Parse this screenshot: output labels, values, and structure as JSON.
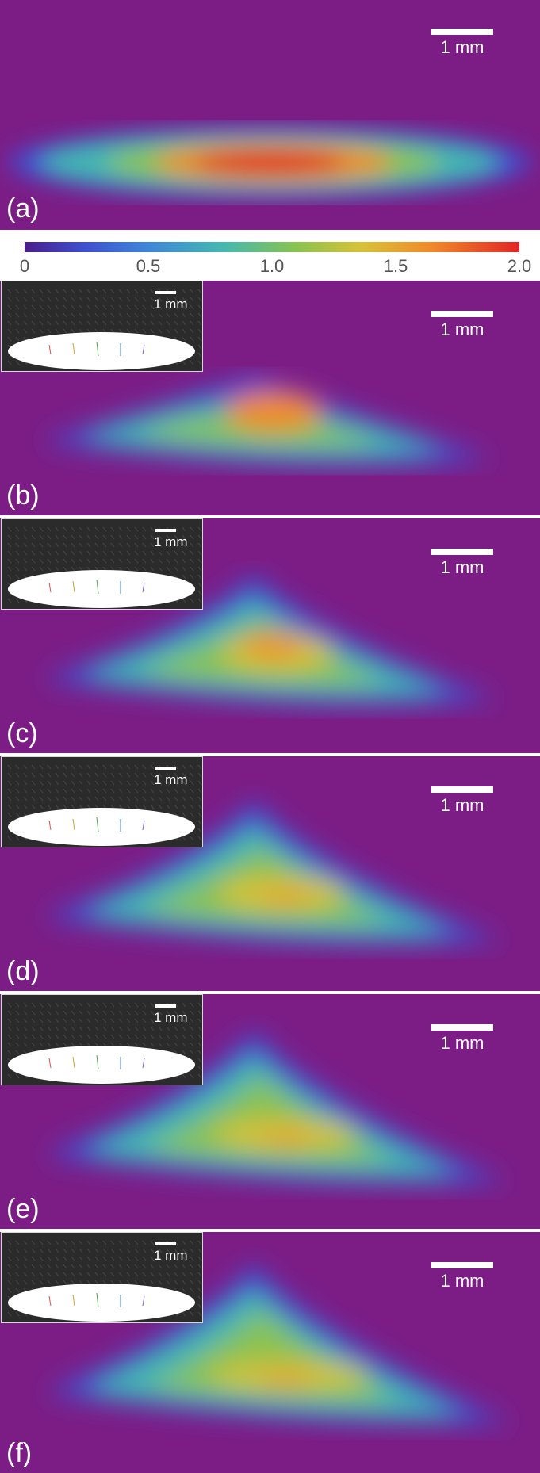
{
  "figure": {
    "panels": [
      {
        "label": "(a)",
        "scale": "1 mm",
        "inset": null
      },
      {
        "label": "(b)",
        "scale": "1 mm",
        "inset": {
          "scale": "1 mm"
        }
      },
      {
        "label": "(c)",
        "scale": "1 mm",
        "inset": {
          "scale": "1 mm"
        }
      },
      {
        "label": "(d)",
        "scale": "1 mm",
        "inset": {
          "scale": "1 mm"
        }
      },
      {
        "label": "(e)",
        "scale": "1 mm",
        "inset": {
          "scale": "1 mm"
        }
      },
      {
        "label": "(f)",
        "scale": "1 mm",
        "inset": {
          "scale": "1 mm"
        }
      }
    ],
    "colorbar": {
      "ticks": [
        "0",
        "0.5",
        "1.0",
        "1.5",
        "2.0"
      ],
      "min": 0,
      "max": 2.0
    },
    "colors": {
      "background": "#7c1d86",
      "low": "#3f4fd0",
      "mid": "#d7c23a",
      "high": "#e02626"
    }
  }
}
